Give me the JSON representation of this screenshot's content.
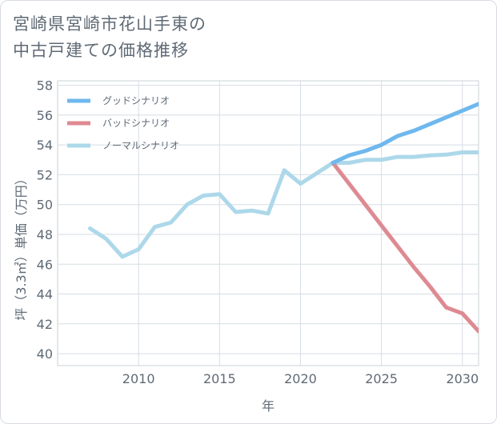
{
  "chart_data": {
    "type": "line",
    "title_line1": "宮崎県宮崎市花山手東の",
    "title_line2": "中古戸建ての価格推移",
    "xlabel": "年",
    "ylabel": "坪（3.3㎡）単価（万円）",
    "xlim": [
      2005,
      2031
    ],
    "ylim": [
      39.2,
      58.3
    ],
    "xticks": [
      2010,
      2015,
      2020,
      2025,
      2030
    ],
    "yticks": [
      40,
      42,
      44,
      46,
      48,
      50,
      52,
      54,
      56,
      58
    ],
    "grid": true,
    "legend_position": "top-left",
    "series": [
      {
        "name": "グッドシナリオ",
        "color": "#6fb8ee",
        "x": [
          2022,
          2023,
          2024,
          2025,
          2026,
          2027,
          2028,
          2029,
          2030,
          2031
        ],
        "values": [
          52.8,
          53.3,
          53.6,
          54.0,
          54.6,
          54.95,
          55.4,
          55.85,
          56.3,
          56.75
        ]
      },
      {
        "name": "バッドシナリオ",
        "color": "#de8a92",
        "x": [
          2022,
          2023,
          2024,
          2025,
          2026,
          2027,
          2028,
          2029,
          2030,
          2031
        ],
        "values": [
          52.8,
          51.4,
          50.0,
          48.6,
          47.2,
          45.8,
          44.5,
          43.1,
          42.7,
          41.5
        ]
      },
      {
        "name": "ノーマルシナリオ",
        "color": "#add8ea",
        "x": [
          2007,
          2008,
          2009,
          2010,
          2011,
          2012,
          2013,
          2014,
          2015,
          2016,
          2017,
          2018,
          2019,
          2020,
          2021,
          2022,
          2023,
          2024,
          2025,
          2026,
          2027,
          2028,
          2029,
          2030,
          2031
        ],
        "values": [
          48.4,
          47.7,
          46.5,
          47.0,
          48.5,
          48.8,
          50.0,
          50.6,
          50.7,
          49.5,
          49.6,
          49.4,
          52.3,
          51.4,
          52.1,
          52.8,
          52.8,
          53.0,
          53.0,
          53.2,
          53.2,
          53.3,
          53.35,
          53.5,
          53.5
        ]
      }
    ]
  }
}
